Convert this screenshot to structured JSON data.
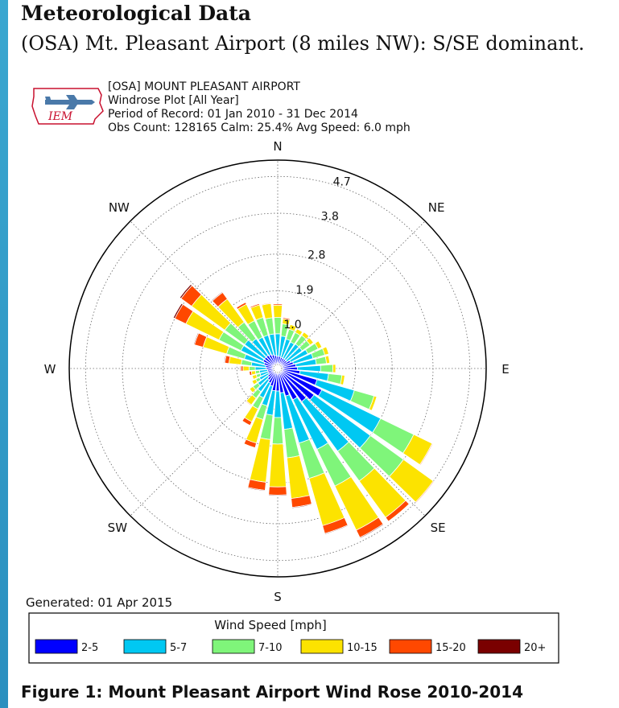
{
  "page": {
    "heading": "Meteorological Data",
    "subheading": "(OSA) Mt. Pleasant Airport (8 miles NW): S/SE dominant.",
    "caption": "Figure 1: Mount Pleasant Airport Wind Rose 2010-2014"
  },
  "logo": {
    "text": "IEM",
    "icon": "iowa-state-airplane-logo"
  },
  "chart_data": {
    "type": "windrose",
    "header_lines": [
      "[OSA] MOUNT PLEASANT AIRPORT",
      "Windrose Plot [All Year]",
      "Period of Record: 01 Jan 2010 - 31 Dec 2014",
      "Obs Count: 128165 Calm: 25.4% Avg Speed: 6.0 mph"
    ],
    "generated": "Generated: 01 Apr 2015",
    "legend_title": "Wind Speed [mph]",
    "legend_placement": "bottom",
    "radial_max": 5.1,
    "radial_ticks": [
      1.0,
      1.9,
      2.8,
      3.8,
      4.7
    ],
    "radial_tick_labels": [
      "1.0",
      "1.9",
      "2.8",
      "3.8",
      "4.7"
    ],
    "direction_labels": [
      {
        "label": "N",
        "angle": 0
      },
      {
        "label": "NE",
        "angle": 45
      },
      {
        "label": "E",
        "angle": 90
      },
      {
        "label": "SE",
        "angle": 135
      },
      {
        "label": "S",
        "angle": 180
      },
      {
        "label": "SW",
        "angle": 225
      },
      {
        "label": "W",
        "angle": 270
      },
      {
        "label": "NW",
        "angle": 315
      }
    ],
    "grid": true,
    "bins": [
      {
        "label": "2-5",
        "color": "#0000ff"
      },
      {
        "label": "5-7",
        "color": "#00c8f2"
      },
      {
        "label": "7-10",
        "color": "#7ff57a"
      },
      {
        "label": "10-15",
        "color": "#fce300"
      },
      {
        "label": "15-20",
        "color": "#ff4800"
      },
      {
        "label": "20+",
        "color": "#7a0000"
      }
    ],
    "directions": [
      0,
      10,
      20,
      30,
      40,
      50,
      60,
      70,
      80,
      90,
      100,
      110,
      120,
      130,
      140,
      150,
      160,
      170,
      180,
      190,
      200,
      210,
      220,
      230,
      240,
      250,
      260,
      270,
      280,
      290,
      300,
      310,
      320,
      330,
      340,
      350
    ],
    "cumulative": [
      [
        0.3,
        0.85,
        1.25,
        1.55,
        1.58,
        1.58
      ],
      [
        0.3,
        0.8,
        1.1,
        1.22,
        1.25,
        1.25
      ],
      [
        0.28,
        0.75,
        1.0,
        1.12,
        1.13,
        1.13
      ],
      [
        0.28,
        0.72,
        0.98,
        1.08,
        1.09,
        1.09
      ],
      [
        0.28,
        0.74,
        1.0,
        1.1,
        1.1,
        1.1
      ],
      [
        0.28,
        0.74,
        0.98,
        1.08,
        1.08,
        1.08
      ],
      [
        0.35,
        0.82,
        1.1,
        1.2,
        1.2,
        1.2
      ],
      [
        0.4,
        0.9,
        1.2,
        1.3,
        1.3,
        1.3
      ],
      [
        0.45,
        0.95,
        1.2,
        1.28,
        1.28,
        1.28
      ],
      [
        0.48,
        1.05,
        1.35,
        1.42,
        1.42,
        1.42
      ],
      [
        0.55,
        1.25,
        1.58,
        1.65,
        1.65,
        1.65
      ],
      [
        1.0,
        1.95,
        2.45,
        2.52,
        2.52,
        2.52
      ],
      [
        1.2,
        2.8,
        3.7,
        4.2,
        4.22,
        4.22
      ],
      [
        1.1,
        2.8,
        3.8,
        4.7,
        4.72,
        4.72
      ],
      [
        1.0,
        2.5,
        3.4,
        4.5,
        4.62,
        4.63
      ],
      [
        0.85,
        2.2,
        3.2,
        4.4,
        4.6,
        4.62
      ],
      [
        0.7,
        1.9,
        2.8,
        4.0,
        4.2,
        4.22
      ],
      [
        0.6,
        1.5,
        2.2,
        3.2,
        3.42,
        3.44
      ],
      [
        0.55,
        1.2,
        1.85,
        2.9,
        3.1,
        3.12
      ],
      [
        0.55,
        1.15,
        1.75,
        2.8,
        3.0,
        3.02
      ],
      [
        0.45,
        0.95,
        1.3,
        1.9,
        2.02,
        2.03
      ],
      [
        0.4,
        0.8,
        1.1,
        1.45,
        1.55,
        1.56
      ],
      [
        0.35,
        0.7,
        0.9,
        1.1,
        1.12,
        1.12
      ],
      [
        0.3,
        0.6,
        0.75,
        0.85,
        0.85,
        0.85
      ],
      [
        0.25,
        0.5,
        0.6,
        0.7,
        0.7,
        0.7
      ],
      [
        0.25,
        0.45,
        0.55,
        0.65,
        0.66,
        0.66
      ],
      [
        0.25,
        0.45,
        0.55,
        0.65,
        0.7,
        0.7
      ],
      [
        0.28,
        0.55,
        0.7,
        0.85,
        0.9,
        0.92
      ],
      [
        0.3,
        0.65,
        0.9,
        1.2,
        1.3,
        1.32
      ],
      [
        0.35,
        0.85,
        1.3,
        1.9,
        2.12,
        2.14
      ],
      [
        0.4,
        1.0,
        1.6,
        2.5,
        2.8,
        2.84
      ],
      [
        0.4,
        1.0,
        1.6,
        2.6,
        2.92,
        2.96
      ],
      [
        0.4,
        0.9,
        1.4,
        2.1,
        2.3,
        2.32
      ],
      [
        0.38,
        0.85,
        1.3,
        1.75,
        1.8,
        1.8
      ],
      [
        0.35,
        0.85,
        1.3,
        1.62,
        1.65,
        1.65
      ],
      [
        0.32,
        0.85,
        1.25,
        1.6,
        1.62,
        1.62
      ]
    ]
  }
}
